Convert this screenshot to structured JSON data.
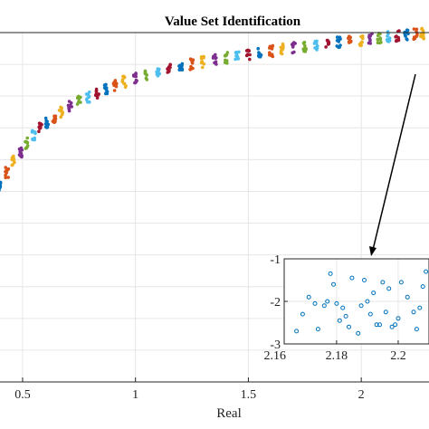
{
  "chart_data": [
    {
      "type": "scatter",
      "title": "Value Set Identification",
      "xlabel": "Real",
      "ylabel": "",
      "xlim": [
        0.4,
        2.3
      ],
      "ylim": [
        -11,
        1
      ],
      "x_ticks": [
        0.5,
        1,
        1.5,
        2
      ],
      "x_tick_labels": [
        "0.5",
        "1",
        "1.5",
        "2"
      ],
      "y_ticks": [],
      "grid": true,
      "palette": [
        "#0072BD",
        "#D95319",
        "#EDB120",
        "#7E2F8E",
        "#77AC30",
        "#4DBEEE",
        "#A2142F"
      ],
      "clusters": [
        {
          "x": 0.4,
          "y": -4.3
        },
        {
          "x": 0.43,
          "y": -3.8
        },
        {
          "x": 0.46,
          "y": -3.4
        },
        {
          "x": 0.49,
          "y": -3.1
        },
        {
          "x": 0.52,
          "y": -2.8
        },
        {
          "x": 0.55,
          "y": -2.55
        },
        {
          "x": 0.58,
          "y": -2.3
        },
        {
          "x": 0.61,
          "y": -2.1
        },
        {
          "x": 0.64,
          "y": -1.9
        },
        {
          "x": 0.67,
          "y": -1.72
        },
        {
          "x": 0.71,
          "y": -1.54
        },
        {
          "x": 0.75,
          "y": -1.37
        },
        {
          "x": 0.79,
          "y": -1.22
        },
        {
          "x": 0.83,
          "y": -1.07
        },
        {
          "x": 0.87,
          "y": -0.94
        },
        {
          "x": 0.91,
          "y": -0.81
        },
        {
          "x": 0.95,
          "y": -0.69
        },
        {
          "x": 1.0,
          "y": -0.56
        },
        {
          "x": 1.05,
          "y": -0.45
        },
        {
          "x": 1.1,
          "y": -0.35
        },
        {
          "x": 1.15,
          "y": -0.26
        },
        {
          "x": 1.2,
          "y": -0.17
        },
        {
          "x": 1.25,
          "y": -0.09
        },
        {
          "x": 1.3,
          "y": -0.01
        },
        {
          "x": 1.35,
          "y": 0.06
        },
        {
          "x": 1.4,
          "y": 0.13
        },
        {
          "x": 1.45,
          "y": 0.19
        },
        {
          "x": 1.5,
          "y": 0.25
        },
        {
          "x": 1.55,
          "y": 0.31
        },
        {
          "x": 1.6,
          "y": 0.36
        },
        {
          "x": 1.65,
          "y": 0.42
        },
        {
          "x": 1.7,
          "y": 0.47
        },
        {
          "x": 1.75,
          "y": 0.52
        },
        {
          "x": 1.8,
          "y": 0.57
        },
        {
          "x": 1.85,
          "y": 0.61
        },
        {
          "x": 1.9,
          "y": 0.66
        },
        {
          "x": 1.95,
          "y": 0.7
        },
        {
          "x": 2.0,
          "y": 0.74
        },
        {
          "x": 2.04,
          "y": 0.78
        },
        {
          "x": 2.08,
          "y": 0.81
        },
        {
          "x": 2.12,
          "y": 0.85
        },
        {
          "x": 2.16,
          "y": 0.88
        },
        {
          "x": 2.2,
          "y": 0.91
        },
        {
          "x": 2.24,
          "y": 0.94
        },
        {
          "x": 2.27,
          "y": 0.96
        }
      ]
    },
    {
      "type": "scatter",
      "title": "",
      "xlabel": "",
      "ylabel": "",
      "xlim": [
        2.163,
        2.21
      ],
      "ylim": [
        -3,
        -1
      ],
      "x_ticks": [
        2.16,
        2.18,
        2.2
      ],
      "x_tick_labels": [
        "2.16",
        "2.18",
        "2.2"
      ],
      "y_ticks": [
        -1,
        -2,
        -3
      ],
      "y_tick_labels": [
        "-1",
        "-2",
        "-3"
      ],
      "grid": true,
      "marker": "circle-open",
      "color": "#0072BD",
      "points": [
        {
          "x": 2.167,
          "y": -2.7
        },
        {
          "x": 2.169,
          "y": -2.3
        },
        {
          "x": 2.171,
          "y": -1.9
        },
        {
          "x": 2.173,
          "y": -2.05
        },
        {
          "x": 2.174,
          "y": -2.65
        },
        {
          "x": 2.176,
          "y": -2.1
        },
        {
          "x": 2.177,
          "y": -2.0
        },
        {
          "x": 2.178,
          "y": -1.35
        },
        {
          "x": 2.179,
          "y": -1.6
        },
        {
          "x": 2.18,
          "y": -2.05
        },
        {
          "x": 2.181,
          "y": -2.45
        },
        {
          "x": 2.182,
          "y": -2.15
        },
        {
          "x": 2.183,
          "y": -2.35
        },
        {
          "x": 2.184,
          "y": -2.6
        },
        {
          "x": 2.185,
          "y": -1.45
        },
        {
          "x": 2.187,
          "y": -2.75
        },
        {
          "x": 2.188,
          "y": -2.1
        },
        {
          "x": 2.189,
          "y": -1.5
        },
        {
          "x": 2.19,
          "y": -2.0
        },
        {
          "x": 2.191,
          "y": -2.3
        },
        {
          "x": 2.192,
          "y": -1.8
        },
        {
          "x": 2.193,
          "y": -2.55
        },
        {
          "x": 2.194,
          "y": -2.55
        },
        {
          "x": 2.195,
          "y": -1.55
        },
        {
          "x": 2.196,
          "y": -2.25
        },
        {
          "x": 2.197,
          "y": -1.7
        },
        {
          "x": 2.198,
          "y": -2.6
        },
        {
          "x": 2.199,
          "y": -2.55
        },
        {
          "x": 2.2,
          "y": -2.4
        },
        {
          "x": 2.201,
          "y": -1.55
        },
        {
          "x": 2.203,
          "y": -1.9
        },
        {
          "x": 2.205,
          "y": -2.25
        },
        {
          "x": 2.206,
          "y": -2.65
        },
        {
          "x": 2.207,
          "y": -2.15
        },
        {
          "x": 2.208,
          "y": -1.65
        },
        {
          "x": 2.209,
          "y": -1.3
        }
      ]
    }
  ]
}
